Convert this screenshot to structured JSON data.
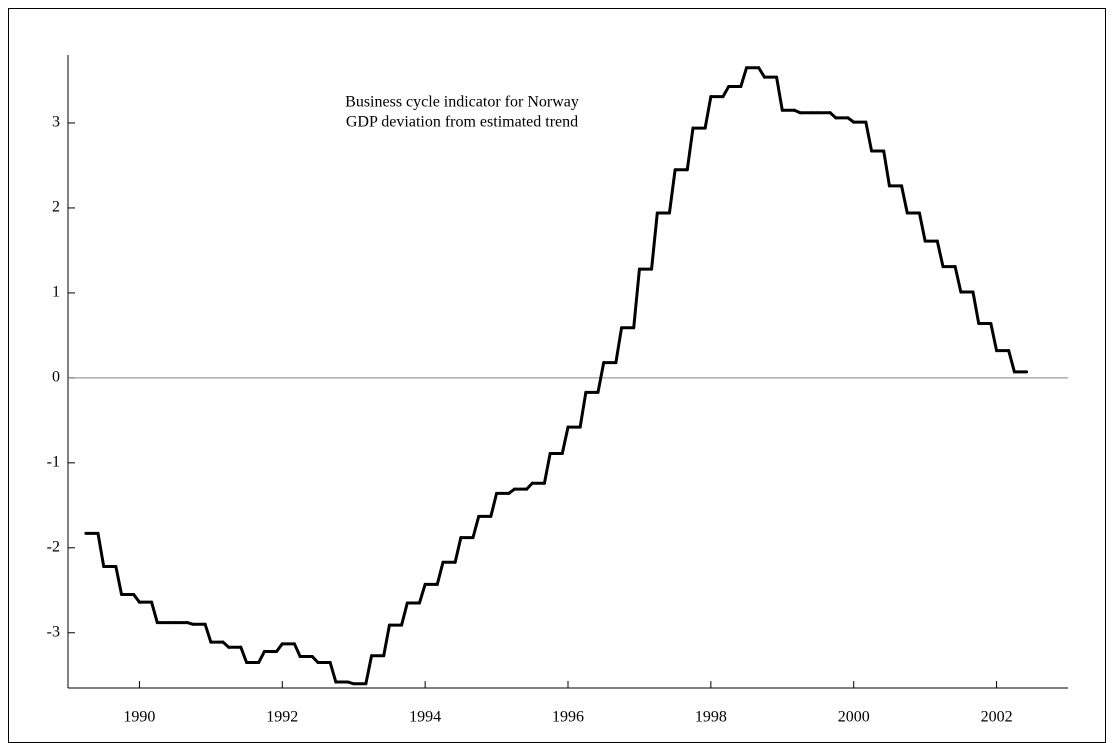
{
  "chart_data": {
    "type": "step",
    "annotation": [
      "Business cycle indicator for Norway",
      "GDP deviation from estimated trend"
    ],
    "x": [
      1989.25,
      1989.5,
      1989.75,
      1990.0,
      1990.25,
      1990.5,
      1990.75,
      1991.0,
      1991.25,
      1991.5,
      1991.75,
      1992.0,
      1992.25,
      1992.5,
      1992.75,
      1993.0,
      1993.25,
      1993.5,
      1993.75,
      1994.0,
      1994.25,
      1994.5,
      1994.75,
      1995.0,
      1995.25,
      1995.5,
      1995.75,
      1996.0,
      1996.25,
      1996.5,
      1996.75,
      1997.0,
      1997.25,
      1997.5,
      1997.75,
      1998.0,
      1998.25,
      1998.5,
      1998.75,
      1999.0,
      1999.25,
      1999.5,
      1999.75,
      2000.0,
      2000.25,
      2000.5,
      2000.75,
      2001.0,
      2001.25,
      2001.5,
      2001.75,
      2002.0,
      2002.25
    ],
    "values": [
      -1.83,
      -2.22,
      -2.55,
      -2.64,
      -2.88,
      -2.88,
      -2.9,
      -3.11,
      -3.17,
      -3.35,
      -3.22,
      -3.13,
      -3.28,
      -3.35,
      -3.58,
      -3.6,
      -3.27,
      -2.91,
      -2.65,
      -2.43,
      -2.17,
      -1.88,
      -1.63,
      -1.36,
      -1.31,
      -1.24,
      -0.89,
      -0.58,
      -0.17,
      0.18,
      0.59,
      1.28,
      1.94,
      2.45,
      2.94,
      3.31,
      3.43,
      3.65,
      3.54,
      3.15,
      3.12,
      3.12,
      3.06,
      3.01,
      2.67,
      2.26,
      1.94,
      1.61,
      1.31,
      1.01,
      0.64,
      0.32,
      0.07
    ],
    "color": "#000000",
    "xlim": [
      1989,
      2003
    ],
    "xticks": [
      1990,
      1992,
      1994,
      1996,
      1998,
      2000,
      2002
    ],
    "ylim": [
      -3.65,
      3.8
    ],
    "yticks": [
      -3,
      -2,
      -1,
      0,
      1,
      2,
      3
    ],
    "hline": 0
  }
}
